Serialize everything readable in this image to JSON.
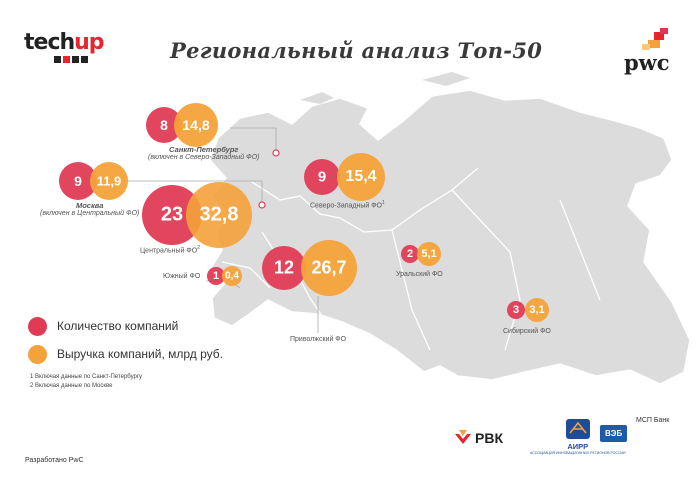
{
  "title": "Региональный анализ Топ-50",
  "logos": {
    "techup_part1": "tech",
    "techup_part2": "up",
    "pwc": "pwc"
  },
  "colors": {
    "count": "#e03b55",
    "revenue": "#f4a23a",
    "map": "#dcdcdc",
    "map_border": "#ffffff",
    "leader": "#aaaaaa"
  },
  "regions": [
    {
      "id": "spb",
      "count": "8",
      "revenue": "14,8",
      "name": "Санкт-Петербург",
      "note": "(включен в Северо-Западный ФО)"
    },
    {
      "id": "msk",
      "count": "9",
      "revenue": "11,9",
      "name": "Москва",
      "note": "(включен в Центральный ФО)"
    },
    {
      "id": "cfo",
      "count": "23",
      "revenue": "32,8",
      "name": "Центральный ФО",
      "sup": "2"
    },
    {
      "id": "szfo",
      "count": "9",
      "revenue": "15,4",
      "name": "Северо-Западный ФО",
      "sup": "1"
    },
    {
      "id": "ufo",
      "count": "1",
      "revenue": "0,4",
      "name": "Южный ФО"
    },
    {
      "id": "pfo",
      "count": "12",
      "revenue": "26,7",
      "name": "Приволжский ФО"
    },
    {
      "id": "urfo",
      "count": "2",
      "revenue": "5,1",
      "name": "Уральский ФО"
    },
    {
      "id": "sfo",
      "count": "3",
      "revenue": "3,1",
      "name": "Сибирский ФО"
    }
  ],
  "legend": {
    "count": "Количество компаний",
    "revenue": "Выручка компаний, млрд руб."
  },
  "footnotes": [
    "1 Включая данные по Санкт-Петербургу",
    "2 Включая данные по Москве"
  ],
  "made_by": "Разработано PwC",
  "partners": {
    "rvk": "РВК",
    "airr": "АИРР",
    "airr_sub": "АССОЦИАЦИЯ ИННОВАЦИОННЫХ РЕГИОНОВ РОССИИ",
    "veb": "ВЭБ",
    "msp": "МСП Банк"
  }
}
